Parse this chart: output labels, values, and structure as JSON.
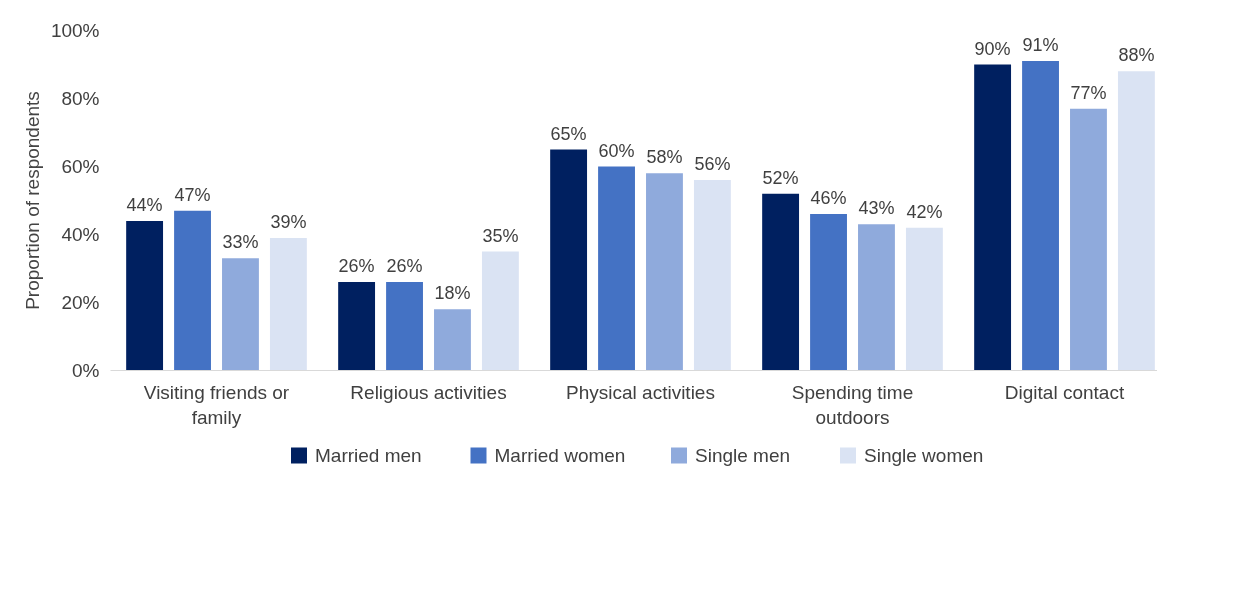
{
  "chart_data": {
    "type": "bar",
    "ylabel": "Proportion of respondents",
    "categories": [
      "Visiting friends or family",
      "Religious activities",
      "Physical activities",
      "Spending time outdoors",
      "Digital contact"
    ],
    "series": [
      {
        "name": "Married men",
        "color": "#002060",
        "values": [
          44,
          26,
          65,
          52,
          90
        ],
        "value_labels": [
          "44%",
          "26%",
          "65%",
          "52%",
          "90%"
        ]
      },
      {
        "name": "Married women",
        "color": "#4472c4",
        "values": [
          47,
          26,
          60,
          46,
          91
        ],
        "value_labels": [
          "47%",
          "26%",
          "60%",
          "46%",
          "91%"
        ]
      },
      {
        "name": "Single men",
        "color": "#8faadc",
        "values": [
          33,
          18,
          58,
          43,
          77
        ],
        "value_labels": [
          "33%",
          "18%",
          "58%",
          "43%",
          "77%"
        ]
      },
      {
        "name": "Single women",
        "color": "#dae3f3",
        "values": [
          39,
          35,
          56,
          42,
          88
        ],
        "value_labels": [
          "39%",
          "35%",
          "56%",
          "42%",
          "88%"
        ]
      }
    ],
    "ylim": [
      0,
      100
    ],
    "yticks": [
      {
        "value": 0,
        "label": "0%"
      },
      {
        "value": 20,
        "label": "20%"
      },
      {
        "value": 40,
        "label": "40%"
      },
      {
        "value": 60,
        "label": "60%"
      },
      {
        "value": 80,
        "label": "80%"
      },
      {
        "value": 100,
        "label": "100%"
      }
    ],
    "grid": false,
    "legend": "bottom"
  }
}
